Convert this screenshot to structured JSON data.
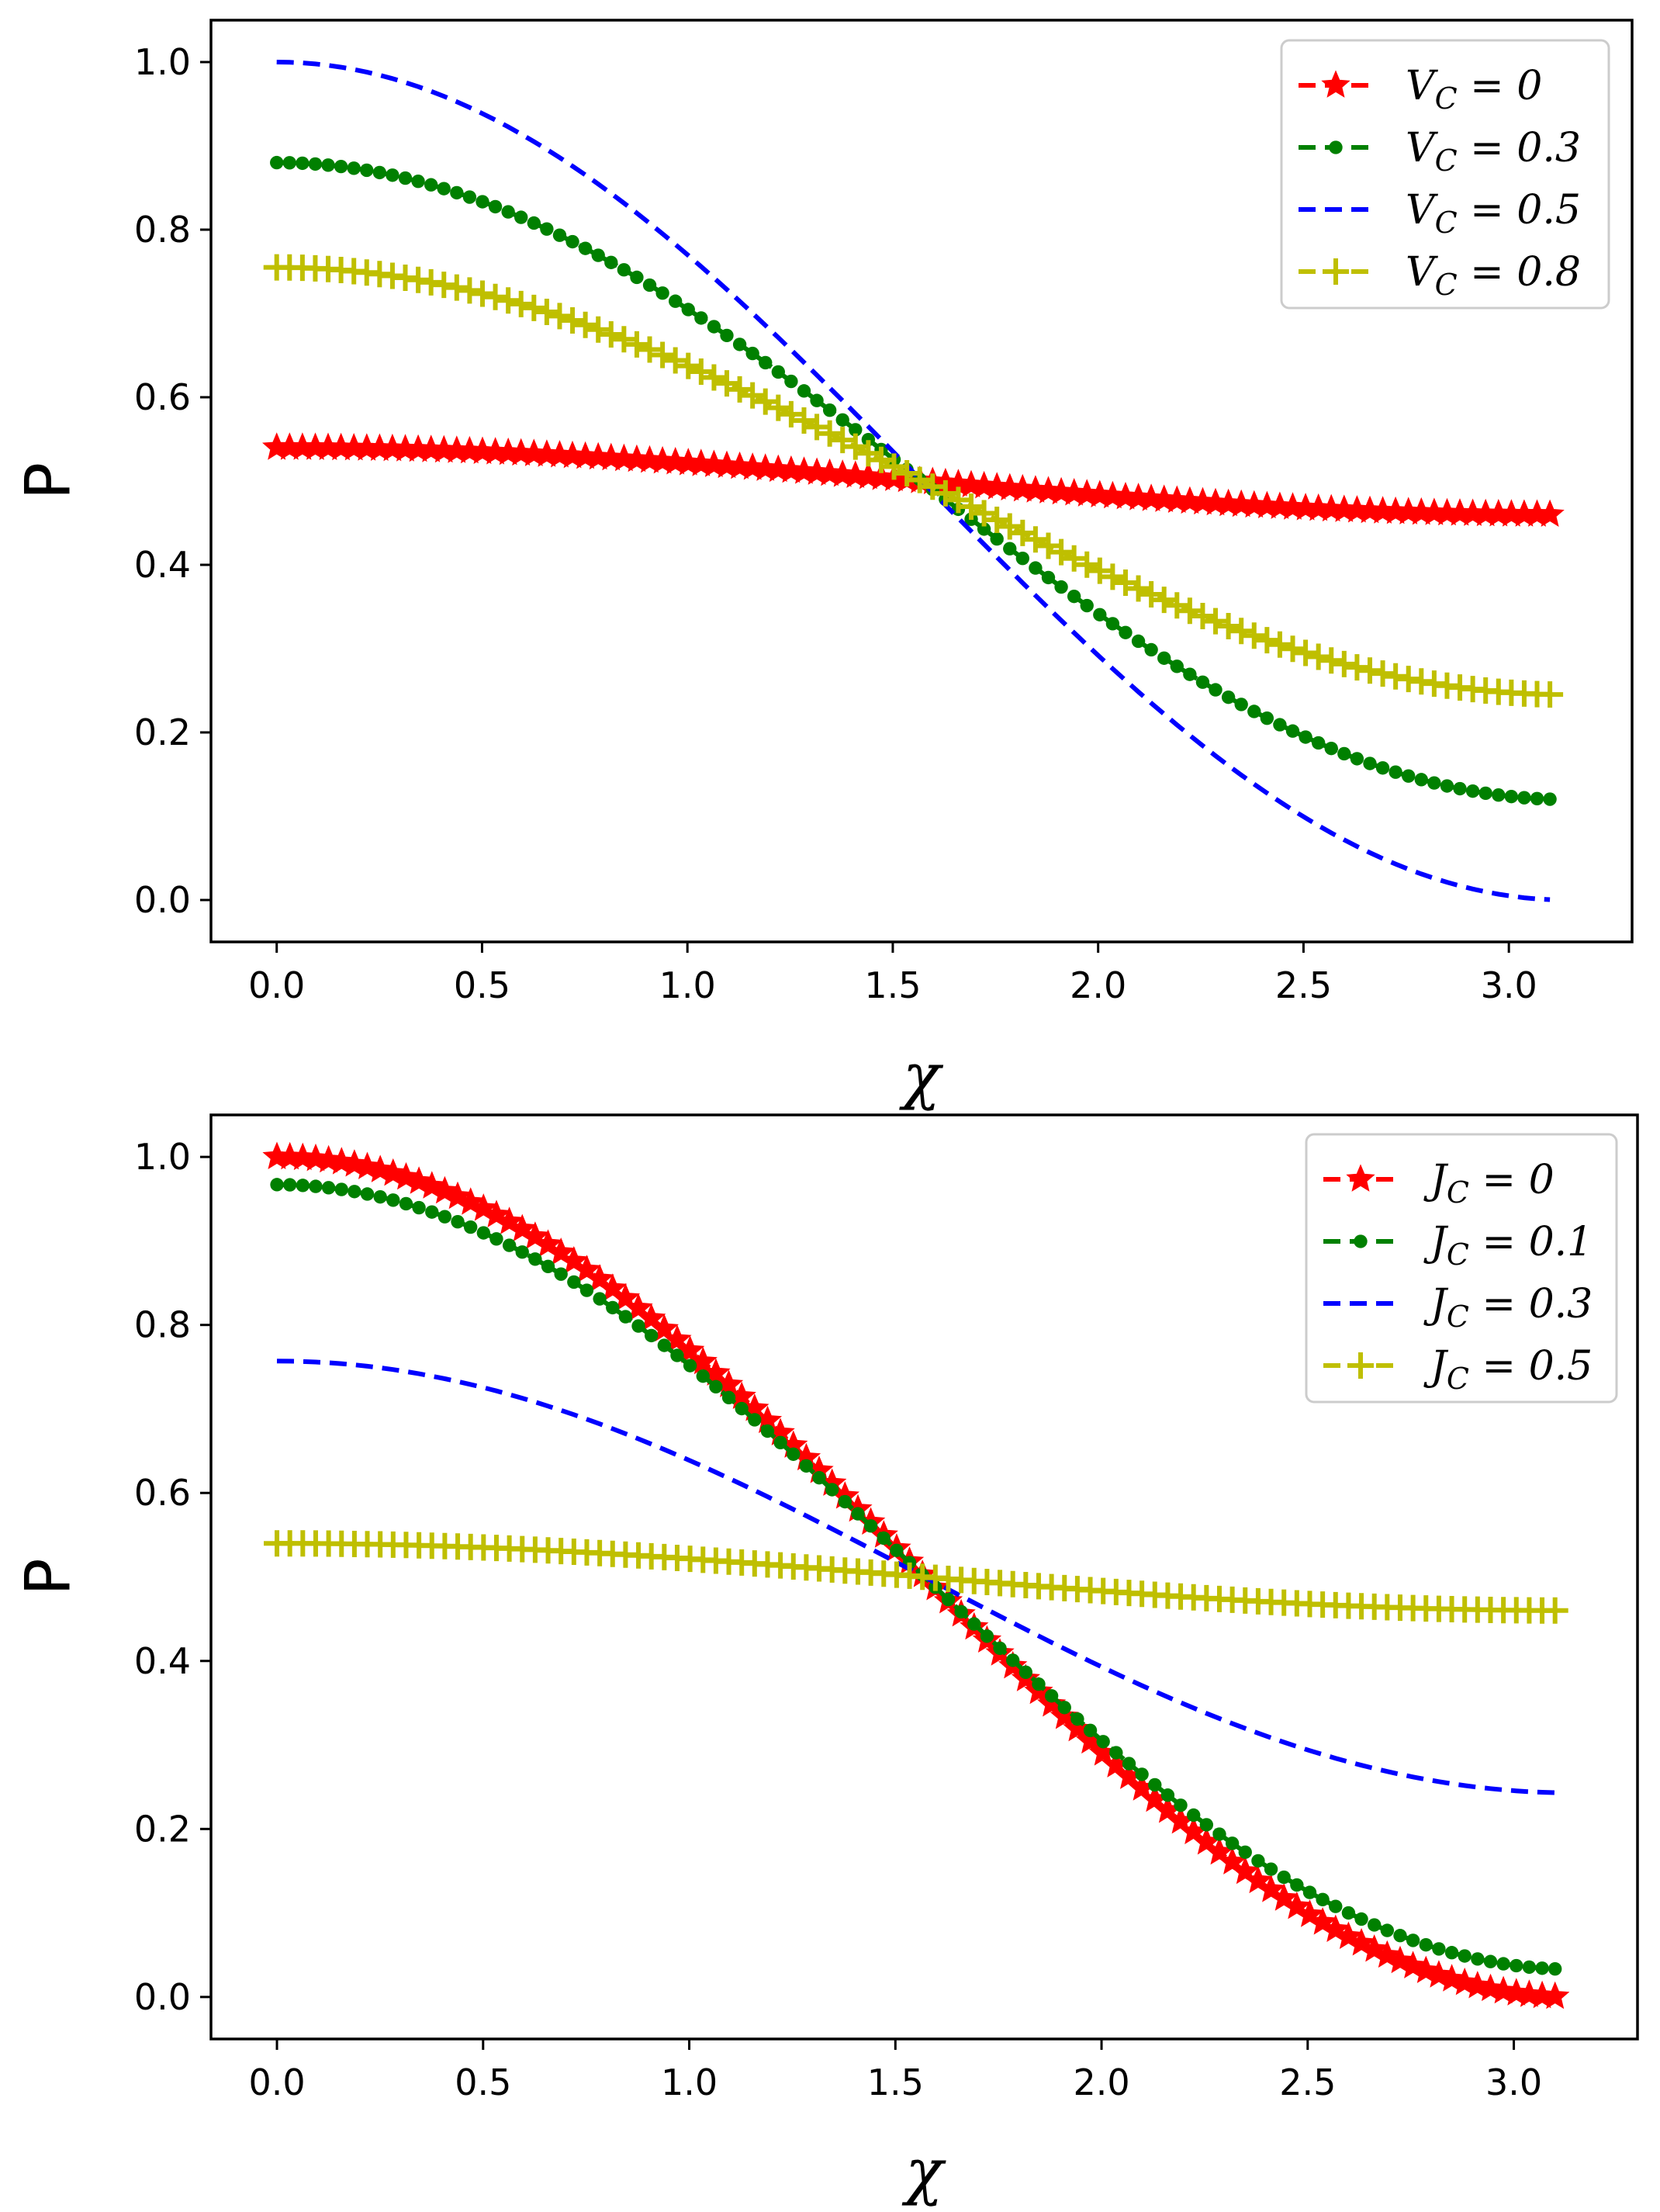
{
  "chart_data": [
    {
      "type": "line",
      "title": "",
      "xlabel": "χ",
      "ylabel": "P",
      "xlim": [
        -0.16,
        3.3
      ],
      "ylim": [
        -0.05,
        1.05
      ],
      "xticks": [
        0.0,
        0.5,
        1.0,
        1.5,
        2.0,
        2.5,
        3.0
      ],
      "xtick_labels": [
        "0.0",
        "0.5",
        "1.0",
        "1.5",
        "2.0",
        "2.5",
        "3.0"
      ],
      "yticks": [
        0.0,
        0.2,
        0.4,
        0.6,
        0.8,
        1.0
      ],
      "ytick_labels": [
        "0.0",
        "0.2",
        "0.4",
        "0.6",
        "0.8",
        "1.0"
      ],
      "grid": false,
      "legend_position": "top-right",
      "x_range": [
        0,
        3.1
      ],
      "series": [
        {
          "name": "V_C = 0",
          "legend_label": "V",
          "legend_sub": "C",
          "legend_value": " = 0",
          "color": "#ff0000",
          "marker": "star",
          "amplitude": 0.04
        },
        {
          "name": "V_C = 0.3",
          "legend_label": "V",
          "legend_sub": "C",
          "legend_value": " = 0.3",
          "color": "#008000",
          "marker": "circle",
          "amplitude": 0.38
        },
        {
          "name": "V_C = 0.5",
          "legend_label": "V",
          "legend_sub": "C",
          "legend_value": " = 0.5",
          "color": "#0000ff",
          "marker": "none",
          "amplitude": 0.5
        },
        {
          "name": "V_C = 0.8",
          "legend_label": "V",
          "legend_sub": "C",
          "legend_value": " = 0.8",
          "color": "#bfbf00",
          "marker": "plus",
          "amplitude": 0.255
        }
      ],
      "formula": "P = 0.5 + amplitude * cos(x)"
    },
    {
      "type": "line",
      "title": "",
      "xlabel": "χ",
      "ylabel": "P",
      "xlim": [
        -0.16,
        3.3
      ],
      "ylim": [
        -0.05,
        1.05
      ],
      "xticks": [
        0.0,
        0.5,
        1.0,
        1.5,
        2.0,
        2.5,
        3.0
      ],
      "xtick_labels": [
        "0.0",
        "0.5",
        "1.0",
        "1.5",
        "2.0",
        "2.5",
        "3.0"
      ],
      "yticks": [
        0.0,
        0.2,
        0.4,
        0.6,
        0.8,
        1.0
      ],
      "ytick_labels": [
        "0.0",
        "0.2",
        "0.4",
        "0.6",
        "0.8",
        "1.0"
      ],
      "grid": false,
      "legend_position": "top-right",
      "x_range": [
        0,
        3.1
      ],
      "series": [
        {
          "name": "J_C = 0",
          "legend_label": "J",
          "legend_sub": "C",
          "legend_value": " = 0",
          "color": "#ff0000",
          "marker": "star",
          "amplitude": 0.5
        },
        {
          "name": "J_C = 0.1",
          "legend_label": "J",
          "legend_sub": "C",
          "legend_value": " = 0.1",
          "color": "#008000",
          "marker": "circle",
          "amplitude": 0.467
        },
        {
          "name": "J_C = 0.3",
          "legend_label": "J",
          "legend_sub": "C",
          "legend_value": " = 0.3",
          "color": "#0000ff",
          "marker": "none",
          "amplitude": 0.257
        },
        {
          "name": "J_C = 0.5",
          "legend_label": "J",
          "legend_sub": "C",
          "legend_value": " = 0.5",
          "color": "#bfbf00",
          "marker": "plus",
          "amplitude": 0.04
        }
      ],
      "formula": "P = 0.5 + amplitude * cos(x)"
    }
  ]
}
